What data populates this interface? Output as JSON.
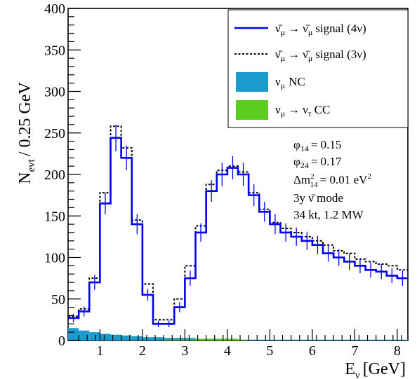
{
  "chart_data": {
    "type": "histogram",
    "xlabel": "E",
    "xlabel_sub": "ν",
    "xlabel_unit": "[GeV]",
    "ylabel": "N",
    "ylabel_sub": "evt",
    "ylabel_unit": "/ 0.25 GeV",
    "xlim": [
      0.25,
      8.25
    ],
    "ylim": [
      0,
      400
    ],
    "xticks": [
      1,
      2,
      3,
      4,
      5,
      6,
      7,
      8
    ],
    "yticks": [
      0,
      50,
      100,
      150,
      200,
      250,
      300,
      350,
      400
    ],
    "bin_edges": [
      0.25,
      0.5,
      0.75,
      1.0,
      1.25,
      1.5,
      1.75,
      2.0,
      2.25,
      2.5,
      2.75,
      3.0,
      3.25,
      3.5,
      3.75,
      4.0,
      4.25,
      4.5,
      4.75,
      5.0,
      5.25,
      5.5,
      5.75,
      6.0,
      6.25,
      6.5,
      6.75,
      7.0,
      7.25,
      7.5,
      7.75,
      8.0,
      8.25
    ],
    "series": [
      {
        "name": "ν̄μ → ν̄μ signal (4ν)",
        "style": "solid",
        "color": "#0000ee",
        "values": [
          27,
          35,
          70,
          165,
          244,
          220,
          140,
          55,
          20,
          20,
          40,
          75,
          130,
          180,
          200,
          208,
          200,
          175,
          155,
          140,
          130,
          125,
          120,
          115,
          105,
          100,
          95,
          90,
          85,
          83,
          78,
          75
        ],
        "errors": [
          5,
          6,
          9,
          13,
          16,
          15,
          12,
          7,
          4,
          4,
          6,
          9,
          11,
          13,
          14,
          14,
          14,
          13,
          12,
          12,
          11,
          11,
          11,
          11,
          10,
          10,
          10,
          9,
          9,
          9,
          9,
          9
        ]
      },
      {
        "name": "ν̄μ → ν̄μ signal (3ν)",
        "style": "dashed",
        "color": "#000000",
        "values": [
          29,
          38,
          75,
          178,
          258,
          232,
          145,
          68,
          25,
          25,
          50,
          90,
          138,
          188,
          205,
          210,
          203,
          178,
          158,
          142,
          135,
          130,
          125,
          120,
          115,
          108,
          105,
          98,
          95,
          92,
          90,
          85
        ]
      },
      {
        "name": "νμ NC",
        "style": "filled",
        "color": "#1a9bcd",
        "values": [
          15,
          12,
          10,
          8,
          7,
          6,
          5,
          4,
          4,
          3,
          3,
          3,
          2,
          2,
          2,
          2,
          1,
          1,
          1,
          1,
          1,
          1,
          1,
          1,
          1,
          1,
          1,
          1,
          1,
          1,
          1,
          1
        ]
      },
      {
        "name": "νμ → ντ CC",
        "style": "filled",
        "color": "#5ccc1f",
        "values": [
          0,
          0,
          0,
          0,
          0,
          0,
          0,
          0,
          0,
          1,
          1,
          1,
          2,
          2,
          2,
          2,
          1,
          0,
          0,
          0,
          0,
          0,
          0,
          0,
          0,
          0,
          0,
          0,
          0,
          0,
          0,
          0
        ]
      }
    ],
    "legend": {
      "placement": "top-right",
      "entries": [
        {
          "sym": "ν̄",
          "sub": "μ",
          "arrow": "→",
          "sym2": "ν̄",
          "sub2": "μ",
          "rest": "signal (4ν)"
        },
        {
          "sym": "ν̄",
          "sub": "μ",
          "arrow": "→",
          "sym2": "ν̄",
          "sub2": "μ",
          "rest": "signal (3ν)"
        },
        {
          "sym": "ν",
          "sub": "μ",
          "arrow": "",
          "sym2": "",
          "sub2": "",
          "rest": "NC"
        },
        {
          "sym": "ν",
          "sub": "μ",
          "arrow": "→",
          "sym2": "ν",
          "sub2": "τ",
          "rest": "CC"
        }
      ]
    },
    "parameters": {
      "phi14_sym": "φ",
      "phi14_sub": "14",
      "phi14_val": "= 0.15",
      "phi24_sym": "φ",
      "phi24_sub": "24",
      "phi24_val": "= 0.17",
      "dm_sym": "Δm",
      "dm_sup": "2",
      "dm_sub": "14",
      "dm_val": "= 0.01 eV",
      "dm_unit_sup": "2",
      "mode": "3y ν̄ mode",
      "detector": "34 kt, 1.2 MW"
    }
  }
}
